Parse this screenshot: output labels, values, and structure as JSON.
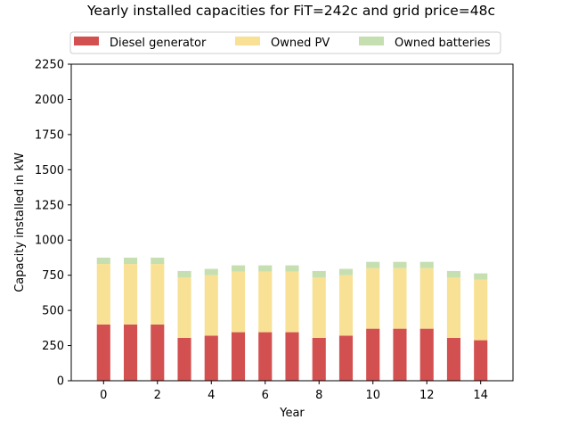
{
  "chart_data": {
    "type": "bar",
    "stacked": true,
    "title": "Yearly installed capacities for FiT=242c and grid price=48c",
    "xlabel": "Year",
    "ylabel": "Capacity installed in kW",
    "x": [
      0,
      1,
      2,
      3,
      4,
      5,
      6,
      7,
      8,
      9,
      10,
      11,
      12,
      13,
      14
    ],
    "xticks": [
      "0",
      "2",
      "4",
      "6",
      "8",
      "10",
      "12",
      "14"
    ],
    "yticks": [
      "0",
      "250",
      "500",
      "750",
      "1000",
      "1250",
      "1500",
      "1750",
      "2000",
      "2250"
    ],
    "xlim": [
      -1.2,
      15.2
    ],
    "ylim": [
      0,
      2250
    ],
    "legend_position": "top-center, above plot",
    "series": [
      {
        "name": "Diesel generator",
        "color": "#d35050",
        "values": [
          400,
          400,
          400,
          305,
          320,
          345,
          345,
          345,
          305,
          320,
          370,
          370,
          370,
          305,
          288
        ]
      },
      {
        "name": "Owned PV",
        "color": "#f8e195",
        "values": [
          430,
          430,
          430,
          430,
          430,
          430,
          430,
          430,
          430,
          430,
          430,
          430,
          430,
          430,
          430
        ]
      },
      {
        "name": "Owned batteries",
        "color": "#c6dfb0",
        "values": [
          45,
          45,
          45,
          45,
          45,
          45,
          45,
          45,
          45,
          45,
          45,
          45,
          45,
          45,
          45
        ]
      }
    ]
  }
}
